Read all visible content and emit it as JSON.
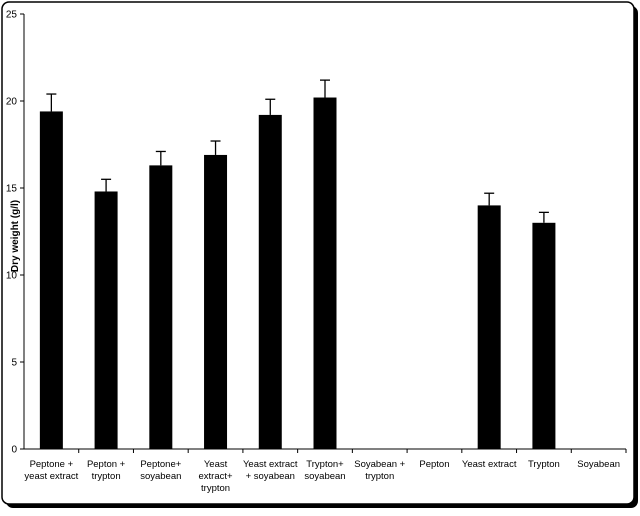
{
  "chart_data": {
    "type": "bar",
    "title": "",
    "xlabel": "",
    "ylabel": "Dry weight (g/l)",
    "ylim": [
      0,
      25
    ],
    "yticks": [
      "0",
      "5",
      "10",
      "15",
      "20",
      "25"
    ],
    "grid": false,
    "legend": "none",
    "bar_color": "#000000",
    "categories": [
      [
        "Peptone +",
        "yeast extract"
      ],
      [
        "Pepton +",
        "trypton"
      ],
      [
        "Peptone+",
        "soyabean"
      ],
      [
        "Yeast",
        "extract+",
        "trypton"
      ],
      [
        "Yeast extract",
        "+ soyabean"
      ],
      [
        "Trypton+",
        "soyabean"
      ],
      [
        "Soyabean +",
        "trypton"
      ],
      [
        "Pepton"
      ],
      [
        "Yeast extract"
      ],
      [
        "Trypton"
      ],
      [
        "Soyabean"
      ]
    ],
    "values": [
      19.4,
      14.8,
      16.3,
      16.9,
      19.2,
      20.2,
      null,
      null,
      14.0,
      13.0,
      null
    ],
    "errors": [
      1.0,
      0.7,
      0.8,
      0.8,
      0.9,
      1.0,
      null,
      null,
      0.7,
      0.6,
      null
    ]
  }
}
